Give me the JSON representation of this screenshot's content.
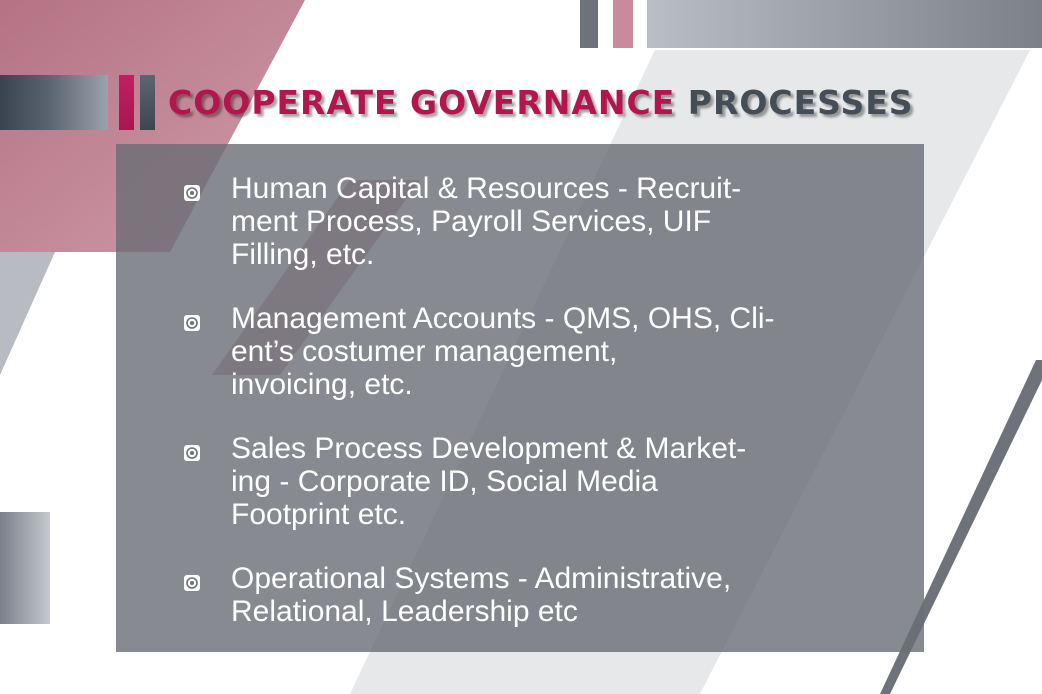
{
  "title": {
    "part1": "COOPERATE GOVERNANCE",
    "part2": "PROCESSES"
  },
  "items": [
    {
      "line1": "Human Capital & Resources - Recruit-",
      "line2": "ment Process, Payroll Services, UIF",
      "line3": "Filling, etc."
    },
    {
      "line1": "Management Accounts - QMS, OHS, Cli-",
      "line2": "ent’s costumer management,",
      "line3": "invoicing, etc."
    },
    {
      "line1": "Sales Process Development & Market-",
      "line2": "ing - Corporate ID, Social Media",
      "line3": "Footprint etc."
    },
    {
      "line1": "Operational Systems - Administrative,",
      "line2": "Relational, Leadership etc"
    }
  ],
  "icons": {
    "bullet": "target-bullet-icon"
  },
  "colors": {
    "accent": "#b3164f",
    "dark": "#454d57",
    "panel": "#6c7077",
    "text": "#ffffff"
  }
}
